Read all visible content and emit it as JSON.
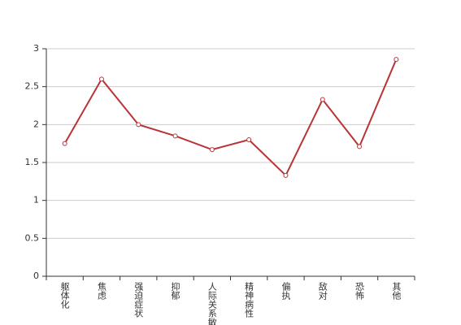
{
  "chart_data": {
    "type": "line",
    "categories": [
      "躯体化",
      "焦虑",
      "强迫症状",
      "抑郁",
      "人际关系敏感",
      "精神病性",
      "偏执",
      "敌对",
      "恐怖",
      "其他"
    ],
    "values": [
      1.75,
      2.6,
      2.0,
      1.85,
      1.67,
      1.8,
      1.33,
      2.33,
      1.71,
      2.86
    ],
    "color": "#b93437",
    "ylim": [
      0,
      3
    ],
    "yticks": [
      0,
      0.5,
      1,
      1.5,
      2,
      2.5,
      3
    ],
    "grid": true
  }
}
